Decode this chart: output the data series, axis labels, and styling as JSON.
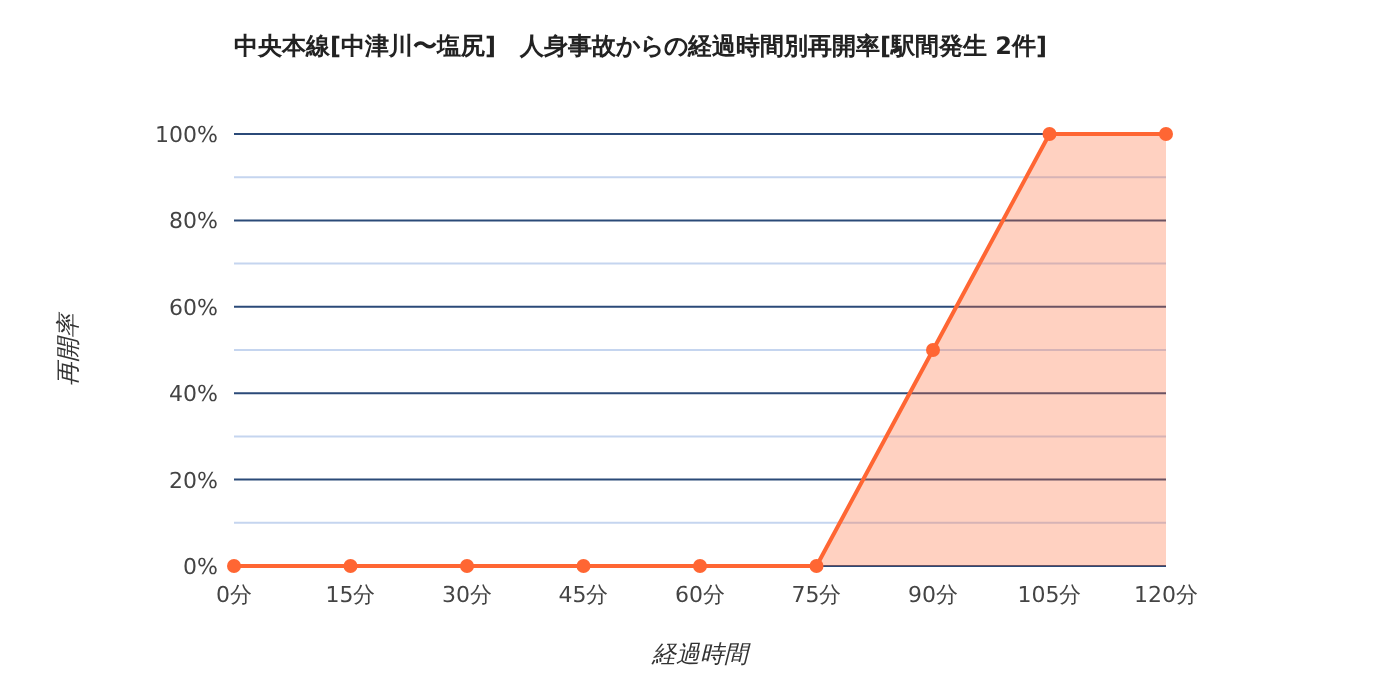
{
  "chart_data": {
    "type": "area",
    "title": "中央本線[中津川〜塩尻]　人身事故からの経過時間別再開率[駅間発生 2件]",
    "xlabel": "経過時間",
    "ylabel": "再開率",
    "categories": [
      "0分",
      "15分",
      "30分",
      "45分",
      "60分",
      "75分",
      "90分",
      "105分",
      "120分"
    ],
    "series": [
      {
        "color": "#ff6633",
        "values": [
          0,
          0,
          0,
          0,
          0,
          0,
          50,
          100,
          100
        ]
      }
    ],
    "ylim": [
      0,
      100
    ],
    "yticks": [
      {
        "value": 0,
        "label": "0%"
      },
      {
        "value": 10,
        "label": null
      },
      {
        "value": 20,
        "label": "20%"
      },
      {
        "value": 30,
        "label": null
      },
      {
        "value": 40,
        "label": "40%"
      },
      {
        "value": 50,
        "label": null
      },
      {
        "value": 60,
        "label": "60%"
      },
      {
        "value": 70,
        "label": null
      },
      {
        "value": 80,
        "label": "80%"
      },
      {
        "value": 90,
        "label": null
      },
      {
        "value": 100,
        "label": "100%"
      }
    ],
    "grid": true,
    "marker": "circle"
  }
}
